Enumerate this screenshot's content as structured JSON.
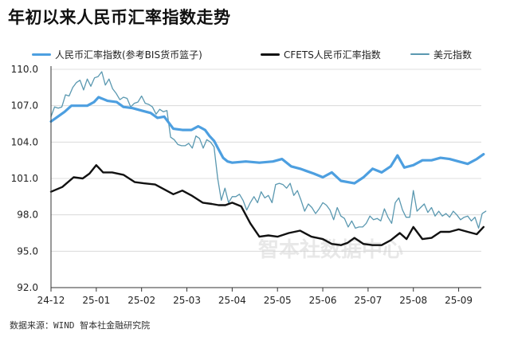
{
  "title": "年初以来人民币汇率指数走势",
  "source": "数据来源：WIND 智本社金融研究院",
  "watermark": "智本社数据中心",
  "colors": {
    "bis": "#4d9fe0",
    "cfets": "#111111",
    "usd": "#5a98b0"
  },
  "chart_data": {
    "type": "line",
    "title": "年初以来人民币汇率指数走势",
    "xlabel": "",
    "ylabel": "",
    "ylim": [
      92.0,
      110.0
    ],
    "yticks": [
      "92.0",
      "95.0",
      "98.0",
      "101.0",
      "104.0",
      "107.0",
      "110.0"
    ],
    "yticks_values": [
      92,
      95,
      98,
      101,
      104,
      107,
      110
    ],
    "xlim": [
      0,
      9.5
    ],
    "xticks": [
      "24-12",
      "25-01",
      "25-02",
      "25-03",
      "25-04",
      "25-05",
      "25-06",
      "25-07",
      "25-08",
      "25-09"
    ],
    "legend": [
      "人民币汇率指数(参考BIS货币篮子)",
      "CFETS人民币汇率指数",
      "美元指数"
    ],
    "series": [
      {
        "name": "人民币汇率指数(参考BIS货币篮子)",
        "key": "bis",
        "width": 3.2,
        "x": [
          0,
          0.15,
          0.3,
          0.45,
          0.6,
          0.8,
          0.95,
          1.05,
          1.25,
          1.45,
          1.6,
          1.8,
          2.0,
          2.2,
          2.35,
          2.5,
          2.7,
          2.9,
          3.1,
          3.25,
          3.4,
          3.5,
          3.6,
          3.7,
          3.8,
          3.9,
          4.0,
          4.3,
          4.6,
          4.9,
          5.1,
          5.3,
          5.5,
          5.8,
          6.0,
          6.2,
          6.4,
          6.7,
          6.9,
          7.1,
          7.3,
          7.5,
          7.65,
          7.8,
          8.0,
          8.2,
          8.4,
          8.6,
          8.8,
          9.0,
          9.2,
          9.4,
          9.55
        ],
        "y": [
          105.7,
          106.1,
          106.5,
          107.0,
          107.0,
          107.0,
          107.3,
          107.7,
          107.4,
          107.3,
          106.9,
          106.8,
          106.6,
          106.4,
          106.0,
          106.1,
          105.1,
          105.0,
          105.0,
          105.3,
          105.0,
          104.5,
          104.1,
          103.4,
          102.7,
          102.4,
          102.3,
          102.4,
          102.3,
          102.4,
          102.6,
          102.0,
          101.8,
          101.4,
          101.1,
          101.5,
          100.8,
          100.6,
          101.1,
          101.8,
          101.5,
          102.0,
          102.9,
          101.9,
          102.1,
          102.5,
          102.5,
          102.7,
          102.6,
          102.4,
          102.2,
          102.6,
          103.0
        ]
      },
      {
        "name": "CFETS人民币汇率指数",
        "key": "cfets",
        "width": 2.4,
        "x": [
          0,
          0.25,
          0.5,
          0.7,
          0.85,
          1.0,
          1.15,
          1.35,
          1.6,
          1.85,
          2.05,
          2.3,
          2.5,
          2.7,
          2.9,
          3.1,
          3.35,
          3.55,
          3.7,
          3.85,
          4.0,
          4.2,
          4.4,
          4.6,
          4.8,
          5.0,
          5.25,
          5.5,
          5.75,
          6.0,
          6.2,
          6.4,
          6.55,
          6.7,
          6.9,
          7.1,
          7.3,
          7.5,
          7.7,
          7.85,
          8.0,
          8.2,
          8.4,
          8.6,
          8.8,
          9.0,
          9.2,
          9.4,
          9.55
        ],
        "y": [
          99.9,
          100.3,
          101.1,
          101.0,
          101.4,
          102.1,
          101.5,
          101.5,
          101.3,
          100.7,
          100.6,
          100.5,
          100.1,
          99.7,
          100.0,
          99.6,
          99.0,
          98.9,
          98.8,
          98.8,
          99.0,
          98.7,
          97.3,
          96.2,
          96.3,
          96.2,
          96.5,
          96.7,
          96.2,
          96.0,
          95.6,
          95.5,
          95.7,
          96.1,
          95.6,
          95.5,
          95.5,
          95.9,
          96.5,
          96.0,
          97.0,
          96.0,
          96.1,
          96.6,
          96.6,
          96.8,
          96.6,
          96.4,
          97.0
        ]
      },
      {
        "name": "美元指数",
        "key": "usd",
        "width": 1.3,
        "x": [
          0,
          0.08,
          0.16,
          0.24,
          0.32,
          0.4,
          0.48,
          0.56,
          0.64,
          0.72,
          0.8,
          0.88,
          0.96,
          1.04,
          1.12,
          1.2,
          1.28,
          1.36,
          1.44,
          1.52,
          1.6,
          1.68,
          1.76,
          1.84,
          1.92,
          2.0,
          2.08,
          2.16,
          2.24,
          2.32,
          2.4,
          2.48,
          2.56,
          2.64,
          2.72,
          2.8,
          2.88,
          2.96,
          3.04,
          3.12,
          3.2,
          3.28,
          3.36,
          3.44,
          3.52,
          3.6,
          3.68,
          3.76,
          3.84,
          3.92,
          4.0,
          4.08,
          4.16,
          4.24,
          4.32,
          4.4,
          4.48,
          4.56,
          4.64,
          4.72,
          4.8,
          4.88,
          4.96,
          5.04,
          5.12,
          5.2,
          5.28,
          5.36,
          5.44,
          5.52,
          5.6,
          5.68,
          5.76,
          5.84,
          5.92,
          6.0,
          6.08,
          6.16,
          6.24,
          6.32,
          6.4,
          6.48,
          6.56,
          6.64,
          6.72,
          6.8,
          6.88,
          6.96,
          7.04,
          7.12,
          7.2,
          7.28,
          7.36,
          7.44,
          7.52,
          7.6,
          7.68,
          7.76,
          7.84,
          7.92,
          8.0,
          8.08,
          8.16,
          8.24,
          8.32,
          8.4,
          8.48,
          8.56,
          8.64,
          8.72,
          8.8,
          8.88,
          8.96,
          9.04,
          9.12,
          9.2,
          9.28,
          9.36,
          9.44,
          9.52,
          9.6
        ],
        "y": [
          106.1,
          106.9,
          106.8,
          106.9,
          107.9,
          107.8,
          108.5,
          108.9,
          109.1,
          108.3,
          109.2,
          108.6,
          109.3,
          109.4,
          109.8,
          108.7,
          109.2,
          108.4,
          108.0,
          107.5,
          107.7,
          107.6,
          106.9,
          107.2,
          107.3,
          107.8,
          107.2,
          107.1,
          106.9,
          106.3,
          106.7,
          106.5,
          106.6,
          104.4,
          104.2,
          103.8,
          103.7,
          103.7,
          103.9,
          103.5,
          104.5,
          104.3,
          103.5,
          104.2,
          104.0,
          103.6,
          101.0,
          99.2,
          100.2,
          99.0,
          99.5,
          99.5,
          99.7,
          99.2,
          98.4,
          99.0,
          99.5,
          99.0,
          99.9,
          99.4,
          99.6,
          99.0,
          100.5,
          100.6,
          100.5,
          100.2,
          100.6,
          99.6,
          100.0,
          99.2,
          98.3,
          98.9,
          98.6,
          98.1,
          98.5,
          99.0,
          98.8,
          98.4,
          97.6,
          98.6,
          97.9,
          97.7,
          97.0,
          97.5,
          96.9,
          97.0,
          97.0,
          97.3,
          97.9,
          97.6,
          97.7,
          97.5,
          98.5,
          97.8,
          97.3,
          99.0,
          99.4,
          98.4,
          97.8,
          97.8,
          100.0,
          98.3,
          98.6,
          98.9,
          98.2,
          98.6,
          97.9,
          98.3,
          97.9,
          98.1,
          97.8,
          98.3,
          98.0,
          97.6,
          97.8,
          97.9,
          97.5,
          97.8,
          96.9,
          98.1,
          98.3
        ]
      }
    ]
  }
}
